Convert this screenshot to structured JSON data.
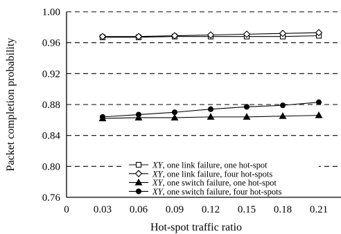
{
  "chart_data": {
    "type": "line",
    "xlabel": "Hot-spot traffic ratio",
    "ylabel": "Packet completion probability",
    "xlim": [
      0,
      0.23
    ],
    "ylim": [
      0.76,
      1.0
    ],
    "x_ticks": [
      0,
      0.03,
      0.06,
      0.09,
      0.12,
      0.15,
      0.18,
      0.21
    ],
    "x_tick_labels": [
      "0",
      "0.03",
      "0.06",
      "0.09",
      "0.12",
      "0.15",
      "0.18",
      "0.21"
    ],
    "y_ticks": [
      0.76,
      0.8,
      0.84,
      0.88,
      0.92,
      0.96,
      1.0
    ],
    "y_tick_labels": [
      "0.76",
      "0.80",
      "0.84",
      "0.88",
      "0.92",
      "0.96",
      "1.00"
    ],
    "grid": "horizontal dashed",
    "legend_position": "bottom-center",
    "x": [
      0.03,
      0.06,
      0.09,
      0.12,
      0.15,
      0.18,
      0.21
    ],
    "series": [
      {
        "name_prefix": "XY",
        "name_suffix": ", one link failure, one hot-spot",
        "marker": "open-square",
        "values": [
          0.967,
          0.967,
          0.968,
          0.968,
          0.968,
          0.968,
          0.969
        ]
      },
      {
        "name_prefix": "XY",
        "name_suffix": ", one link failure, four hot-spots",
        "marker": "open-diamond",
        "values": [
          0.968,
          0.968,
          0.969,
          0.97,
          0.971,
          0.972,
          0.973
        ]
      },
      {
        "name_prefix": "XY",
        "name_suffix": ", one switch failure, one hot-spot",
        "marker": "filled-triangle",
        "values": [
          0.862,
          0.863,
          0.863,
          0.864,
          0.864,
          0.865,
          0.866
        ]
      },
      {
        "name_prefix": "XY",
        "name_suffix": ", one switch failure, four hot-spots",
        "marker": "filled-circle",
        "values": [
          0.864,
          0.867,
          0.87,
          0.874,
          0.877,
          0.879,
          0.883
        ]
      }
    ]
  }
}
